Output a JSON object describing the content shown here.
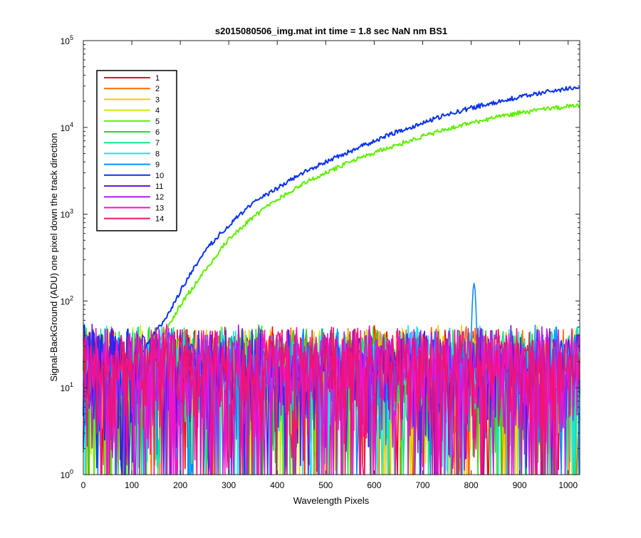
{
  "chart_data": {
    "type": "line",
    "title": "s2015080506_img.mat int time = 1.8 sec  NaN nm BS1",
    "xlabel": "Wavelength Pixels",
    "ylabel": "Signal-BackGround (ADU) one pixel down the track direction",
    "xlim": [
      0,
      1024
    ],
    "ylim": [
      1,
      100000
    ],
    "yscale": "log",
    "x_ticks": [
      "0",
      "100",
      "200",
      "300",
      "400",
      "500",
      "600",
      "700",
      "800",
      "900",
      "1000"
    ],
    "x_tick_values": [
      0,
      100,
      200,
      300,
      400,
      500,
      600,
      700,
      800,
      900,
      1000
    ],
    "y_ticks": [
      {
        "base": "10",
        "exp": "0",
        "value": 1
      },
      {
        "base": "10",
        "exp": "1",
        "value": 10
      },
      {
        "base": "10",
        "exp": "2",
        "value": 100
      },
      {
        "base": "10",
        "exp": "3",
        "value": 1000
      },
      {
        "base": "10",
        "exp": "4",
        "value": 10000
      },
      {
        "base": "10",
        "exp": "5",
        "value": 100000
      }
    ],
    "grid": false,
    "legend_position": "top-left",
    "noise_level_range": [
      1,
      55
    ],
    "series": [
      {
        "name": "1",
        "color": "#ff0000",
        "kind": "noise"
      },
      {
        "name": "2",
        "color": "#ff6a00",
        "kind": "noise"
      },
      {
        "name": "3",
        "color": "#ffc800",
        "kind": "noise"
      },
      {
        "name": "4",
        "color": "#c8f000",
        "kind": "noise"
      },
      {
        "name": "5",
        "color": "#5ef000",
        "kind": "signal",
        "x": [
          150,
          175,
          200,
          250,
          300,
          350,
          400,
          450,
          500,
          550,
          600,
          650,
          700,
          750,
          800,
          850,
          900,
          950,
          1000,
          1024
        ],
        "y": [
          30,
          50,
          90,
          220,
          520,
          930,
          1480,
          2200,
          3000,
          4000,
          5100,
          6400,
          7900,
          9500,
          11300,
          13000,
          14700,
          16100,
          17500,
          18000
        ]
      },
      {
        "name": "6",
        "color": "#1ee01e",
        "kind": "noise"
      },
      {
        "name": "7",
        "color": "#14e68c",
        "kind": "noise"
      },
      {
        "name": "8",
        "color": "#14e6e6",
        "kind": "noise"
      },
      {
        "name": "9",
        "color": "#0a8cff",
        "kind": "noise",
        "peak": {
          "x": 806,
          "y": 160
        }
      },
      {
        "name": "10",
        "color": "#0a32f0",
        "kind": "signal",
        "x": [
          120,
          150,
          175,
          200,
          250,
          300,
          350,
          400,
          450,
          500,
          550,
          600,
          650,
          700,
          750,
          800,
          850,
          900,
          950,
          1000,
          1024
        ],
        "y": [
          25,
          45,
          70,
          130,
          380,
          750,
          1330,
          2000,
          2950,
          4000,
          5300,
          7000,
          9000,
          11300,
          14000,
          16800,
          19600,
          22400,
          25300,
          28200,
          29500
        ]
      },
      {
        "name": "11",
        "color": "#6414e6",
        "kind": "noise"
      },
      {
        "name": "12",
        "color": "#b41ee6",
        "kind": "noise"
      },
      {
        "name": "13",
        "color": "#f014c8",
        "kind": "noise"
      },
      {
        "name": "14",
        "color": "#f0146e",
        "kind": "noise"
      }
    ]
  }
}
